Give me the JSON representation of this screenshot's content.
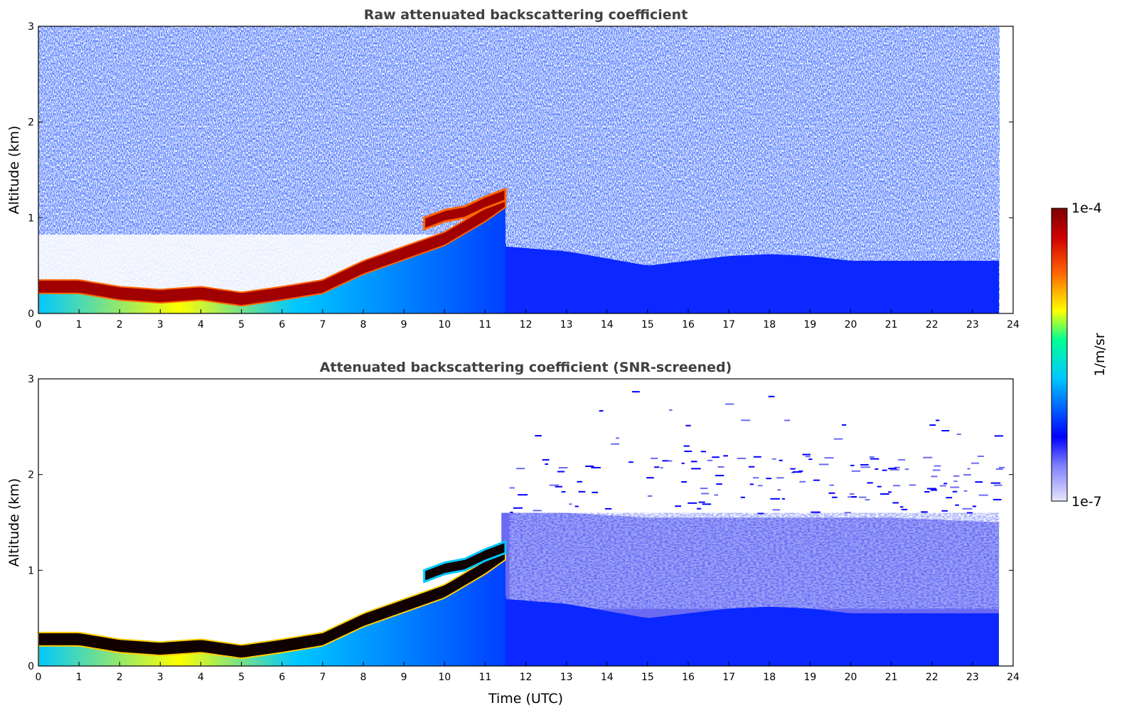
{
  "chart_data": [
    {
      "type": "heatmap",
      "title": "Raw attenuated backscattering coefficient",
      "xlabel": "",
      "ylabel": "Altitude (km)",
      "xlim": [
        0,
        24
      ],
      "ylim": [
        0,
        3
      ],
      "xticks": [
        "0",
        "1",
        "2",
        "3",
        "4",
        "5",
        "6",
        "7",
        "8",
        "9",
        "10",
        "11",
        "12",
        "13",
        "14",
        "15",
        "16",
        "17",
        "18",
        "19",
        "20",
        "21",
        "22",
        "23",
        "24"
      ],
      "yticks": [
        "0",
        "1",
        "2",
        "3"
      ],
      "layers": [
        {
          "name": "boundary layer top",
          "time": [
            0,
            1,
            2,
            3,
            4,
            5,
            6,
            7,
            8,
            9,
            10,
            11,
            11.5
          ],
          "altitude_km": [
            0.35,
            0.35,
            0.28,
            0.25,
            0.28,
            0.22,
            0.28,
            0.35,
            0.55,
            0.7,
            0.85,
            1.1,
            1.25
          ]
        },
        {
          "name": "background aerosol top",
          "time": [
            11.5,
            13,
            15,
            17,
            18,
            19,
            20,
            21,
            23.7
          ],
          "altitude_km": [
            0.7,
            0.65,
            0.5,
            0.6,
            0.62,
            0.6,
            0.55,
            0.55,
            0.55
          ]
        }
      ]
    },
    {
      "type": "heatmap",
      "title": "Attenuated backscattering coefficient (SNR-screened)",
      "xlabel": "Time (UTC)",
      "ylabel": "Altitude (km)",
      "xlim": [
        0,
        24
      ],
      "ylim": [
        0,
        3
      ],
      "xticks": [
        "0",
        "1",
        "2",
        "3",
        "4",
        "5",
        "6",
        "7",
        "8",
        "9",
        "10",
        "11",
        "12",
        "13",
        "14",
        "15",
        "16",
        "17",
        "18",
        "19",
        "20",
        "21",
        "22",
        "23",
        "24"
      ],
      "yticks": [
        "0",
        "1",
        "2",
        "3"
      ],
      "layers": [
        {
          "name": "boundary layer top",
          "time": [
            0,
            1,
            2,
            3,
            4,
            5,
            6,
            7,
            8,
            9,
            10,
            11,
            11.5
          ],
          "altitude_km": [
            0.35,
            0.35,
            0.28,
            0.25,
            0.28,
            0.22,
            0.28,
            0.35,
            0.55,
            0.7,
            0.85,
            1.1,
            1.25
          ]
        },
        {
          "name": "screened signal top",
          "time": [
            11.5,
            13,
            15,
            17,
            19,
            21,
            23.7
          ],
          "altitude_km": [
            1.6,
            1.6,
            1.55,
            1.55,
            1.55,
            1.55,
            1.5
          ]
        }
      ]
    }
  ],
  "colorbar": {
    "label": "1/m/sr",
    "max_label": "1e-4",
    "min_label": "1e-7",
    "scale": "log",
    "colormap": [
      "#e6e6fa",
      "#0000ff",
      "#00c8ff",
      "#ffff00",
      "#ff6400",
      "#a00000",
      "#7a0000"
    ]
  },
  "colors": {
    "title": "#404040",
    "strong_layer": "#a00000",
    "aerosol": "#0000ff",
    "background": "#ffffff"
  }
}
